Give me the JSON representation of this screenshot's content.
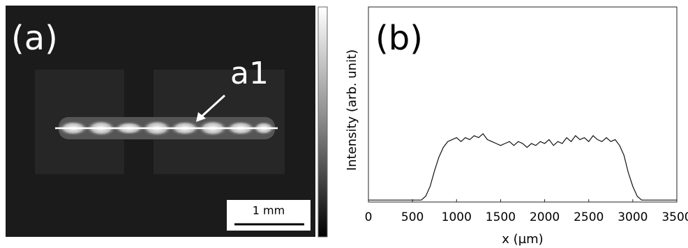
{
  "panel_a": {
    "label": "(a)",
    "annotation": "a1",
    "scale_bar": "1 mm"
  },
  "chart_data": {
    "type": "line",
    "panel_label": "(b)",
    "x_label": "x (µm)",
    "y_label": "Intensity (arb. unit)",
    "x": [
      0,
      50,
      100,
      150,
      200,
      250,
      300,
      350,
      400,
      450,
      500,
      550,
      600,
      650,
      700,
      750,
      800,
      850,
      900,
      950,
      1000,
      1050,
      1100,
      1150,
      1200,
      1250,
      1300,
      1350,
      1400,
      1450,
      1500,
      1550,
      1600,
      1650,
      1700,
      1750,
      1800,
      1850,
      1900,
      1950,
      2000,
      2050,
      2100,
      2150,
      2200,
      2250,
      2300,
      2350,
      2400,
      2450,
      2500,
      2550,
      2600,
      2650,
      2700,
      2750,
      2800,
      2850,
      2900,
      2950,
      3000,
      3050,
      3100,
      3150,
      3200,
      3250,
      3300,
      3350,
      3400,
      3450,
      3500
    ],
    "series": [
      {
        "color": "#111111",
        "values": [
          0.01,
          0.01,
          0.01,
          0.01,
          0.01,
          0.01,
          0.01,
          0.01,
          0.01,
          0.01,
          0.01,
          0.01,
          0.01,
          0.03,
          0.08,
          0.16,
          0.23,
          0.28,
          0.31,
          0.32,
          0.33,
          0.31,
          0.33,
          0.32,
          0.34,
          0.33,
          0.35,
          0.32,
          0.31,
          0.3,
          0.29,
          0.3,
          0.31,
          0.29,
          0.31,
          0.3,
          0.28,
          0.3,
          0.29,
          0.31,
          0.3,
          0.32,
          0.29,
          0.31,
          0.3,
          0.33,
          0.31,
          0.34,
          0.32,
          0.33,
          0.31,
          0.34,
          0.32,
          0.31,
          0.33,
          0.31,
          0.32,
          0.29,
          0.24,
          0.15,
          0.08,
          0.03,
          0.01,
          0.01,
          0.01,
          0.01,
          0.01,
          0.01,
          0.01,
          0.01,
          0.01
        ]
      }
    ],
    "xlim": [
      0,
      3500
    ],
    "xticks": [
      0,
      500,
      1000,
      1500,
      2000,
      2500,
      3000,
      3500
    ],
    "ylim": [
      0,
      1
    ],
    "grid": false
  }
}
